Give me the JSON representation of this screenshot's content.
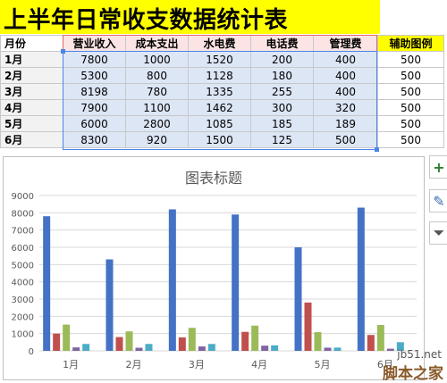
{
  "title": "上半年日常收支数据统计表",
  "table": {
    "row_header": "月份",
    "columns": [
      "营业收入",
      "成本支出",
      "水电费",
      "电话费",
      "管理费"
    ],
    "aux_header": "辅助图例",
    "rows": [
      {
        "label": "1月",
        "values": [
          "7800",
          "1000",
          "1520",
          "200",
          "400"
        ],
        "aux": "500"
      },
      {
        "label": "2月",
        "values": [
          "5300",
          "800",
          "1128",
          "180",
          "400"
        ],
        "aux": "500"
      },
      {
        "label": "3月",
        "values": [
          "8198",
          "780",
          "1335",
          "255",
          "400"
        ],
        "aux": "500"
      },
      {
        "label": "4月",
        "values": [
          "7900",
          "1100",
          "1462",
          "300",
          "320"
        ],
        "aux": "500"
      },
      {
        "label": "5月",
        "values": [
          "6000",
          "2800",
          "1085",
          "185",
          "189"
        ],
        "aux": "500"
      },
      {
        "label": "6月",
        "values": [
          "8300",
          "920",
          "1500",
          "125",
          "500"
        ],
        "aux": "500"
      }
    ]
  },
  "chart": {
    "title": "图表标题",
    "side_buttons": [
      {
        "name": "add-chart-element-button",
        "glyph": "+"
      },
      {
        "name": "chart-styles-button",
        "glyph": "✎"
      },
      {
        "name": "chart-filters-button",
        "glyph": "⏷"
      }
    ]
  },
  "chart_data": {
    "type": "bar",
    "title": "图表标题",
    "categories": [
      "1月",
      "2月",
      "3月",
      "4月",
      "5月",
      "6月"
    ],
    "series": [
      {
        "values": [
          7800,
          5300,
          8198,
          7900,
          6000,
          8300
        ],
        "color": "#4472c4"
      },
      {
        "values": [
          1000,
          800,
          780,
          1100,
          2800,
          920
        ],
        "color": "#c0504d"
      },
      {
        "values": [
          1520,
          1128,
          1335,
          1462,
          1085,
          1500
        ],
        "color": "#9bbb59"
      },
      {
        "values": [
          200,
          180,
          255,
          300,
          185,
          125
        ],
        "color": "#8064a2"
      },
      {
        "values": [
          400,
          400,
          400,
          320,
          189,
          500
        ],
        "color": "#4bacc6"
      }
    ],
    "ylim": [
      0,
      9000
    ],
    "yticks": [
      0,
      1000,
      2000,
      3000,
      4000,
      5000,
      6000,
      7000,
      8000,
      9000
    ],
    "grid": true
  },
  "watermark": {
    "line1": "jb51.net",
    "line2": "脚本之家"
  }
}
